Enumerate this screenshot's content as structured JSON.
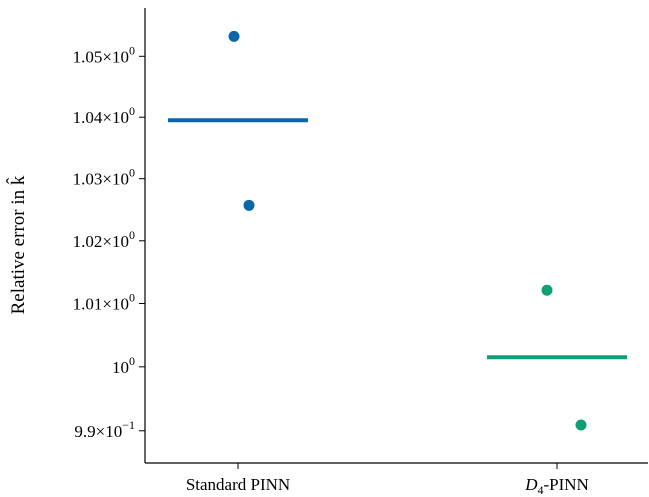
{
  "chart_data": {
    "type": "scatter",
    "ylabel": "Relative error in k̂",
    "yscale": "log",
    "ylim": [
      0.985,
      1.058
    ],
    "grid": false,
    "categories": [
      "Standard PINN",
      "D4-PINN"
    ],
    "category_labels": [
      {
        "pre": "Standard PINN",
        "sub": "",
        "post": ""
      },
      {
        "pre": "D",
        "sub": "4",
        "post": "-PINN"
      }
    ],
    "yticks": [
      {
        "value": 0.99,
        "mantissa": "9.9",
        "exp": "−1"
      },
      {
        "value": 1.0,
        "mantissa": "",
        "exp": "0"
      },
      {
        "value": 1.01,
        "mantissa": "1.01",
        "exp": "0"
      },
      {
        "value": 1.02,
        "mantissa": "1.02",
        "exp": "0"
      },
      {
        "value": 1.03,
        "mantissa": "1.03",
        "exp": "0"
      },
      {
        "value": 1.04,
        "mantissa": "1.04",
        "exp": "0"
      },
      {
        "value": 1.05,
        "mantissa": "1.05",
        "exp": "0"
      }
    ],
    "series": [
      {
        "category": "Standard PINN",
        "color": "#0a66a8",
        "points": [
          1.0533,
          1.0257
        ],
        "mean": 1.0395
      },
      {
        "category": "D4-PINN",
        "color": "#0f9e76",
        "points": [
          1.0121,
          0.9909
        ],
        "mean": 1.0015
      }
    ]
  }
}
